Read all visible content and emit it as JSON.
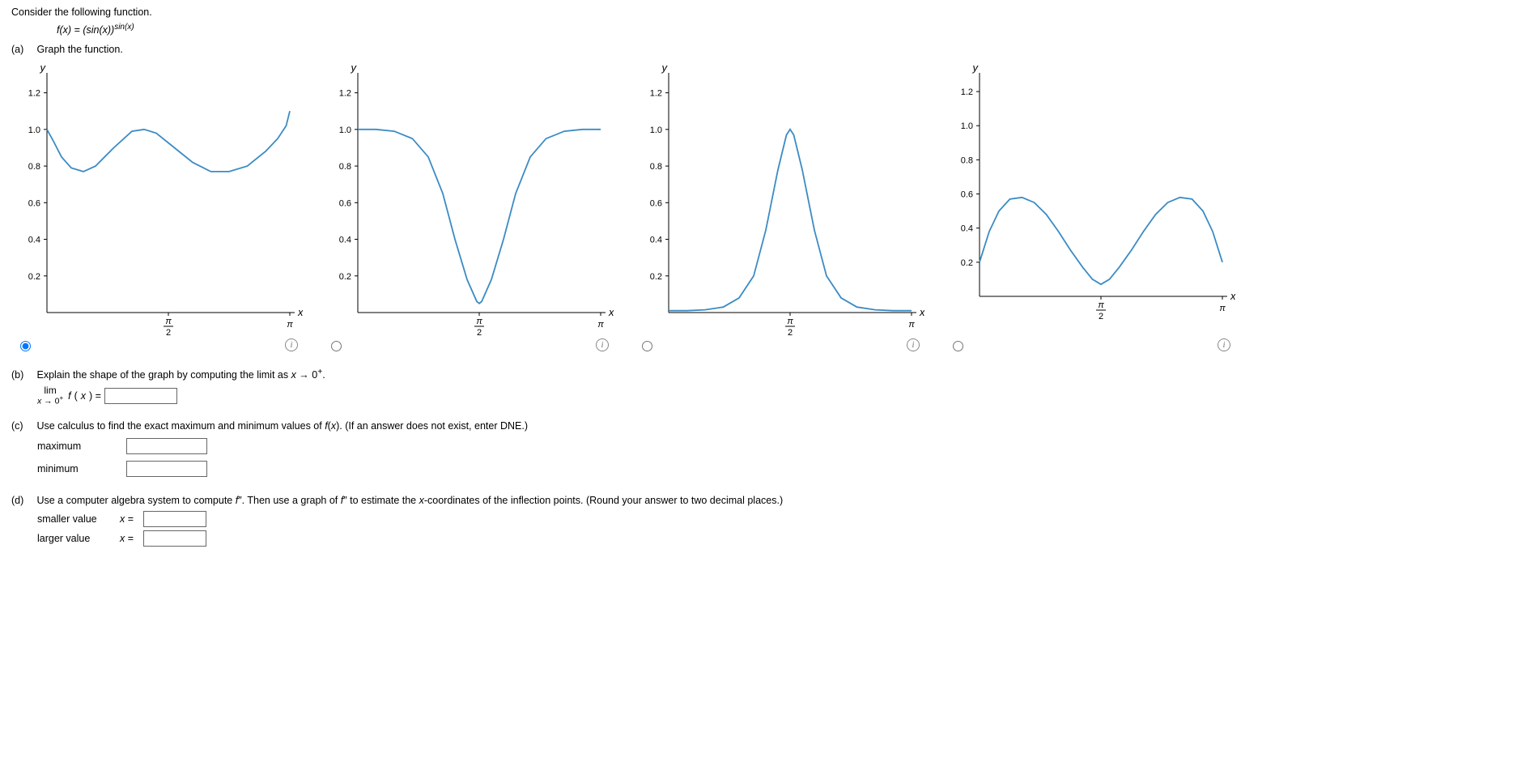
{
  "intro": "Consider the following function.",
  "equation_html": "f(x) = (sin(x))",
  "equation_sup": "sin(x)",
  "parts": {
    "a": {
      "label": "(a)",
      "text": "Graph the function."
    },
    "b": {
      "label": "(b)",
      "text": "Explain the shape of the graph by computing the limit as x → 0⁺.",
      "limit_top": "lim",
      "limit_bot": "x → 0⁺",
      "limit_mid": "f(x) ="
    },
    "c": {
      "label": "(c)",
      "text": "Use calculus to find the exact maximum and minimum values of f(x). (If an answer does not exist, enter DNE.)",
      "max_label": "maximum",
      "min_label": "minimum"
    },
    "d": {
      "label": "(d)",
      "text": "Use a computer algebra system to compute f″. Then use a graph of f″ to estimate the x-coordinates of the inflection points. (Round your answer to two decimal places.)",
      "smaller": "smaller value",
      "larger": "larger value",
      "x_eq": "x ="
    }
  },
  "graph_common": {
    "axis_y_label": "y",
    "axis_x_label": "x",
    "y_ticks": [
      0.2,
      0.4,
      0.6,
      0.8,
      1.0,
      1.2
    ],
    "x_tick_labels": [
      "π/2",
      "π"
    ],
    "curve_color": "#3b8bc4",
    "background": "#ffffff",
    "axis_color": "#000000"
  },
  "graphs": [
    {
      "id": "g1",
      "selected": true,
      "ylim": [
        0,
        1.3
      ],
      "y_start": 1.0,
      "curve_pts": [
        [
          0.0,
          1.0
        ],
        [
          0.05,
          0.94
        ],
        [
          0.12,
          0.85
        ],
        [
          0.2,
          0.79
        ],
        [
          0.3,
          0.77
        ],
        [
          0.4,
          0.8
        ],
        [
          0.55,
          0.9
        ],
        [
          0.7,
          0.99
        ],
        [
          0.8,
          1.0
        ],
        [
          0.9,
          0.98
        ],
        [
          1.05,
          0.9
        ],
        [
          1.2,
          0.82
        ],
        [
          1.35,
          0.77
        ],
        [
          1.5,
          0.77
        ],
        [
          1.65,
          0.8
        ],
        [
          1.8,
          0.88
        ],
        [
          1.9,
          0.95
        ],
        [
          1.97,
          1.02
        ],
        [
          2.0,
          1.1
        ]
      ]
    },
    {
      "id": "g2",
      "selected": false,
      "ylim": [
        0,
        1.3
      ],
      "curve_pts": [
        [
          0.0,
          1.0
        ],
        [
          0.15,
          1.0
        ],
        [
          0.3,
          0.99
        ],
        [
          0.45,
          0.95
        ],
        [
          0.58,
          0.85
        ],
        [
          0.7,
          0.65
        ],
        [
          0.8,
          0.4
        ],
        [
          0.9,
          0.18
        ],
        [
          0.98,
          0.06
        ],
        [
          1.0,
          0.05
        ],
        [
          1.02,
          0.06
        ],
        [
          1.1,
          0.18
        ],
        [
          1.2,
          0.4
        ],
        [
          1.3,
          0.65
        ],
        [
          1.42,
          0.85
        ],
        [
          1.55,
          0.95
        ],
        [
          1.7,
          0.99
        ],
        [
          1.85,
          1.0
        ],
        [
          2.0,
          1.0
        ]
      ]
    },
    {
      "id": "g3",
      "selected": false,
      "ylim": [
        0,
        1.3
      ],
      "curve_pts": [
        [
          0.0,
          0.01
        ],
        [
          0.15,
          0.01
        ],
        [
          0.3,
          0.015
        ],
        [
          0.45,
          0.03
        ],
        [
          0.58,
          0.08
        ],
        [
          0.7,
          0.2
        ],
        [
          0.8,
          0.45
        ],
        [
          0.9,
          0.78
        ],
        [
          0.97,
          0.97
        ],
        [
          1.0,
          1.0
        ],
        [
          1.03,
          0.97
        ],
        [
          1.1,
          0.78
        ],
        [
          1.2,
          0.45
        ],
        [
          1.3,
          0.2
        ],
        [
          1.42,
          0.08
        ],
        [
          1.55,
          0.03
        ],
        [
          1.7,
          0.015
        ],
        [
          1.85,
          0.01
        ],
        [
          2.0,
          0.01
        ]
      ]
    },
    {
      "id": "g4",
      "selected": false,
      "ylim": [
        0,
        1.3
      ],
      "y_axis_label_high": true,
      "curve_pts": [
        [
          0.0,
          0.2
        ],
        [
          0.08,
          0.38
        ],
        [
          0.16,
          0.5
        ],
        [
          0.25,
          0.57
        ],
        [
          0.35,
          0.58
        ],
        [
          0.45,
          0.55
        ],
        [
          0.55,
          0.48
        ],
        [
          0.65,
          0.38
        ],
        [
          0.75,
          0.27
        ],
        [
          0.85,
          0.17
        ],
        [
          0.93,
          0.1
        ],
        [
          1.0,
          0.07
        ],
        [
          1.07,
          0.1
        ],
        [
          1.15,
          0.17
        ],
        [
          1.25,
          0.27
        ],
        [
          1.35,
          0.38
        ],
        [
          1.45,
          0.48
        ],
        [
          1.55,
          0.55
        ],
        [
          1.65,
          0.58
        ],
        [
          1.75,
          0.57
        ],
        [
          1.84,
          0.5
        ],
        [
          1.92,
          0.38
        ],
        [
          2.0,
          0.2
        ]
      ]
    }
  ]
}
